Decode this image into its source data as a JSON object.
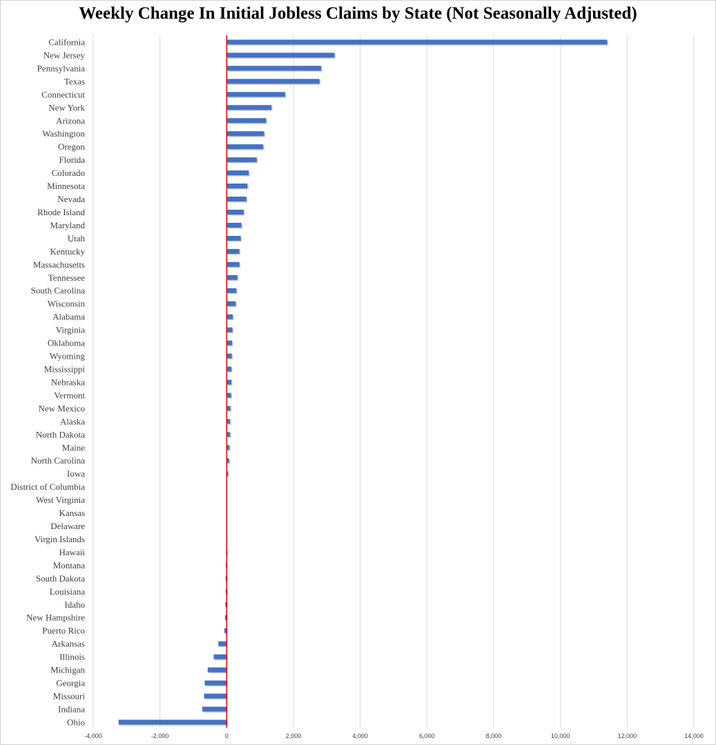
{
  "chart_data": {
    "type": "bar",
    "orientation": "horizontal",
    "title": "Weekly Change In Initial Jobless Claims by State (Not Seasonally Adjusted)",
    "xlabel": "",
    "ylabel": "",
    "xlim": [
      -4000,
      14000
    ],
    "x_ticks": [
      -4000,
      -2000,
      0,
      2000,
      4000,
      6000,
      8000,
      10000,
      12000,
      14000
    ],
    "x_tick_labels": [
      "-4,000",
      "-2,000",
      "0",
      "2,000",
      "4,000",
      "6,000",
      "8,000",
      "10,000",
      "12,000",
      "14,000"
    ],
    "grid": "vertical",
    "legend": "none",
    "bar_color": "#4472C4",
    "zero_line_color": "#E00000",
    "categories": [
      "California",
      "New Jersey",
      "Pennsylvania",
      "Texas",
      "Connecticut",
      "New York",
      "Arizona",
      "Washington",
      "Oregon",
      "Florida",
      "Colorado",
      "Minnesota",
      "Nevada",
      "Rhode Island",
      "Maryland",
      "Utah",
      "Kentucky",
      "Massachusetts",
      "Tennessee",
      "South Carolina",
      "Wisconsin",
      "Alabama",
      "Virginia",
      "Oklahoma",
      "Wyoming",
      "Mississippi",
      "Nebraska",
      "Vermont",
      "New Mexico",
      "Alaska",
      "North Dakota",
      "Maine",
      "North Carolina",
      "Iowa",
      "District of Columbia",
      "West Virginia",
      "Kansas",
      "Delaware",
      "Virgin Islands",
      "Hawaii",
      "Montana",
      "South Dakota",
      "Louisiana",
      "Idaho",
      "New Hampshire",
      "Puerto Rico",
      "Arkansas",
      "Illinois",
      "Michigan",
      "Georgia",
      "Missouri",
      "Indiana",
      "Ohio"
    ],
    "values": [
      11400,
      3230,
      2830,
      2780,
      1750,
      1340,
      1180,
      1120,
      1090,
      900,
      660,
      620,
      590,
      510,
      440,
      420,
      380,
      380,
      320,
      290,
      270,
      180,
      170,
      160,
      150,
      140,
      140,
      130,
      110,
      100,
      100,
      80,
      70,
      40,
      10,
      5,
      5,
      5,
      -5,
      -20,
      -25,
      -30,
      -30,
      -40,
      -50,
      -70,
      -250,
      -390,
      -570,
      -660,
      -680,
      -730,
      -3240
    ]
  }
}
